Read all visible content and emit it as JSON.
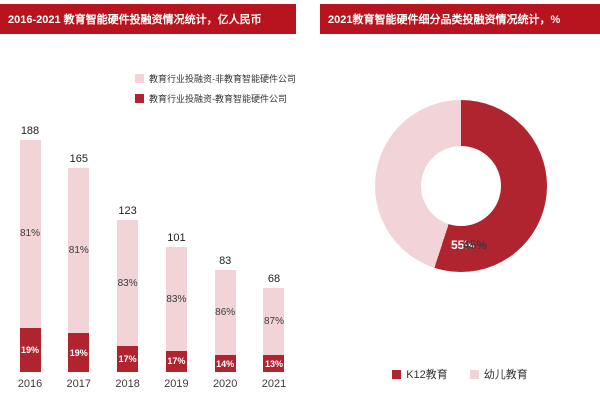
{
  "colors": {
    "header": "#b8141f",
    "dark": "#b02430",
    "light": "#f2d4d8",
    "total_text": "#1f1f1f"
  },
  "chart_data": [
    {
      "type": "bar",
      "stacked": true,
      "title": "2016-2021 教育智能硬件投融资情况统计，亿人民币",
      "categories": [
        "2016",
        "2017",
        "2018",
        "2019",
        "2020",
        "2021"
      ],
      "totals": [
        188,
        165,
        123,
        101,
        83,
        68
      ],
      "series": [
        {
          "name": "教育行业投融资-非教育智能硬件公司",
          "color": "#f2d4d8",
          "values": [
            81,
            81,
            83,
            83,
            86,
            87
          ]
        },
        {
          "name": "教育行业投融资-教育智能硬件公司",
          "color": "#b02430",
          "values": [
            19,
            19,
            17,
            17,
            14,
            13
          ]
        }
      ],
      "value_unit": "%",
      "legend_position": "top-right",
      "grid": false
    },
    {
      "type": "pie",
      "subtype": "donut",
      "title": "2021教育智能硬件细分品类投融资情况统计，%",
      "labels": [
        "K12教育",
        "幼儿教育"
      ],
      "values": [
        55,
        45
      ],
      "colors": [
        "#b02430",
        "#f2d4d8"
      ],
      "legend_position": "bottom",
      "start_angle_deg": 0
    }
  ]
}
